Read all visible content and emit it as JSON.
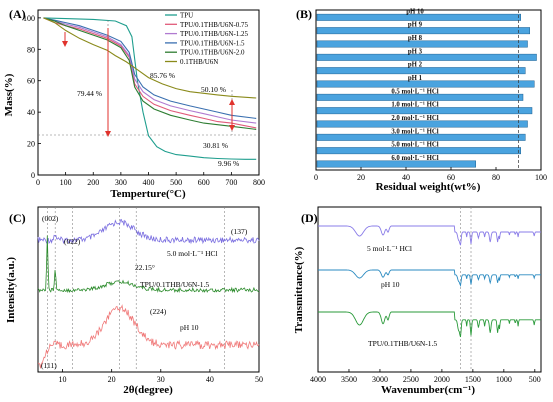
{
  "chart_data": [
    {
      "panel": "(A)",
      "type": "line",
      "xlabel": "Temperture(°C)",
      "ylabel": "Mass(%)",
      "xlim": [
        0,
        800
      ],
      "ylim": [
        0,
        105
      ],
      "xticks": [
        0,
        100,
        200,
        300,
        400,
        500,
        600,
        700,
        800
      ],
      "yticks": [
        0,
        20,
        40,
        60,
        80,
        100
      ],
      "legend_position": "top-right",
      "series": [
        {
          "name": "TPU",
          "color": "#1f9e8e",
          "x": [
            20,
            100,
            200,
            280,
            320,
            340,
            360,
            380,
            400,
            430,
            460,
            500,
            550,
            600,
            650,
            700,
            750,
            790
          ],
          "y": [
            100,
            99.5,
            99,
            98,
            95,
            88,
            60,
            40,
            25,
            18,
            15,
            13,
            12,
            11,
            10.5,
            10.2,
            10,
            9.96
          ]
        },
        {
          "name": "TPU/0.1THB/U6N-0.75",
          "color": "#e05a7a",
          "x": [
            20,
            60,
            100,
            150,
            200,
            250,
            300,
            330,
            350,
            380,
            420,
            480,
            550,
            600,
            650,
            700,
            790
          ],
          "y": [
            100,
            97,
            95,
            93,
            90,
            87,
            82,
            75,
            58,
            50,
            45,
            41,
            38,
            36,
            34,
            33,
            30
          ]
        },
        {
          "name": "TPU/0.1THB/U6N-1.25",
          "color": "#b07ad0",
          "x": [
            20,
            60,
            100,
            150,
            200,
            250,
            300,
            330,
            350,
            380,
            420,
            480,
            550,
            600,
            650,
            700,
            790
          ],
          "y": [
            100,
            98,
            96,
            94,
            91,
            88,
            83,
            76,
            61,
            53,
            48,
            44,
            41,
            39,
            37,
            35,
            33
          ]
        },
        {
          "name": "TPU/0.1THB/U6N-1.5",
          "color": "#3a6fb0",
          "x": [
            20,
            60,
            100,
            150,
            200,
            250,
            300,
            330,
            350,
            380,
            420,
            480,
            550,
            600,
            650,
            700,
            790
          ],
          "y": [
            100,
            98.5,
            97,
            95,
            92,
            89,
            85,
            78,
            64,
            56,
            51,
            47,
            44,
            42,
            40,
            38,
            36
          ]
        },
        {
          "name": "TPU/0.1THB/U6N-2.0",
          "color": "#2e7d32",
          "x": [
            20,
            60,
            100,
            150,
            200,
            250,
            300,
            330,
            350,
            380,
            420,
            480,
            550,
            600,
            650,
            700,
            790
          ],
          "y": [
            100,
            98,
            95,
            92,
            89,
            86,
            81,
            73,
            56,
            47,
            42,
            38,
            35,
            33,
            32,
            31,
            29
          ]
        },
        {
          "name": "0.1THB/U6N",
          "color": "#8a8a1a",
          "x": [
            20,
            60,
            100,
            150,
            200,
            250,
            280,
            320,
            360,
            400,
            450,
            500,
            550,
            600,
            650,
            700,
            790
          ],
          "y": [
            100,
            97,
            92,
            87,
            83,
            79.44,
            76,
            72,
            67,
            62,
            58,
            55,
            53,
            52,
            51,
            50.1,
            49
          ]
        }
      ],
      "annotations": [
        "85.76 %",
        "79.44 %",
        "50.10 %",
        "30.81 %",
        "9.96 %"
      ]
    },
    {
      "panel": "(B)",
      "type": "bar",
      "orientation": "horizontal",
      "xlabel": "Residual weight(wt%)",
      "xlim": [
        0,
        100
      ],
      "xticks": [
        0,
        20,
        40,
        60,
        80,
        100
      ],
      "grid": false,
      "reference_line": 90,
      "bar_color": "#4aa3df",
      "categories": [
        "pH 10",
        "pH 9",
        "pH 8",
        "pH 3",
        "pH 2",
        "pH 1",
        "0.5 mol·L⁻¹ HCl",
        "1.0 mol·L⁻¹ HCl",
        "2.0 mol·L⁻¹ HCl",
        "3.0 mol·L⁻¹ HCl",
        "5.0 mol·L⁻¹ HCl",
        "6.0 mol·L⁻¹ HCl"
      ],
      "values": [
        91,
        95,
        94,
        98,
        93,
        97,
        92,
        96,
        94,
        93,
        91,
        71
      ]
    },
    {
      "panel": "(C)",
      "type": "line",
      "xlabel": "2θ(degree)",
      "ylabel": "Intensity(a.u.)",
      "xlim": [
        5,
        50
      ],
      "xticks": [
        10,
        20,
        30,
        40,
        50
      ],
      "reference_lines": [
        6.9,
        8.5,
        12,
        21.6,
        25,
        43
      ],
      "series": [
        {
          "name": "5.0 mol·L⁻¹ HCl",
          "color": "#7b6fe0"
        },
        {
          "name": "TPU/0.1THB/U6N-1.5",
          "color": "#2a8a2a"
        },
        {
          "name": "pH 10",
          "color": "#f07a7a"
        }
      ],
      "annotations": [
        "(002)",
        "(022)",
        "(137)",
        "22.15°",
        "(224)",
        "(111)"
      ]
    },
    {
      "panel": "(D)",
      "type": "line",
      "xlabel": "Wavenumber(cm⁻¹)",
      "ylabel": "Transmittance(%)",
      "xlim": [
        4000,
        400
      ],
      "xticks": [
        4000,
        3500,
        3000,
        2500,
        2000,
        1500,
        1000,
        500
      ],
      "reference_lines": [
        1700,
        1530
      ],
      "series": [
        {
          "name": "5 mol·L⁻¹ HCl",
          "color": "#8a7ce8"
        },
        {
          "name": "pH 10",
          "color": "#2a8ac0"
        },
        {
          "name": "TPU/0.1THB/U6N-1.5",
          "color": "#2a9a3a"
        }
      ]
    }
  ]
}
